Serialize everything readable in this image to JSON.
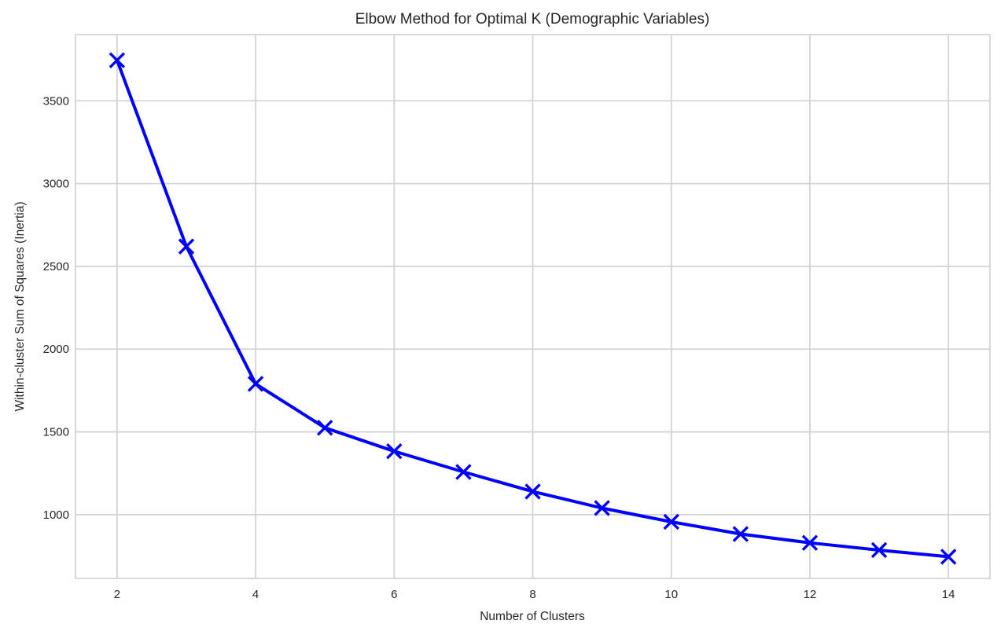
{
  "chart_data": {
    "type": "line",
    "title": "Elbow Method for Optimal K (Demographic Variables)",
    "xlabel": "Number of Clusters",
    "ylabel": "Within-cluster Sum of Squares (Inertia)",
    "series": [
      {
        "name": "inertia",
        "x": [
          2,
          3,
          4,
          5,
          6,
          7,
          8,
          9,
          10,
          11,
          12,
          13,
          14
        ],
        "y": [
          3745,
          2620,
          1790,
          1525,
          1383,
          1258,
          1140,
          1040,
          957,
          883,
          830,
          786,
          746
        ],
        "color": "#0000FF",
        "marker": "x",
        "line_width": 4,
        "marker_size": 9
      }
    ],
    "xticks": [
      2,
      4,
      6,
      8,
      10,
      12,
      14
    ],
    "yticks": [
      1000,
      1500,
      2000,
      2500,
      3000,
      3500
    ],
    "xlim": [
      1.4,
      14.6
    ],
    "ylim": [
      615,
      3900
    ],
    "grid": true,
    "legend": false,
    "grid_color": "#D4D4D4",
    "background_color": "#FFFFFF",
    "text_color": "#262626"
  }
}
